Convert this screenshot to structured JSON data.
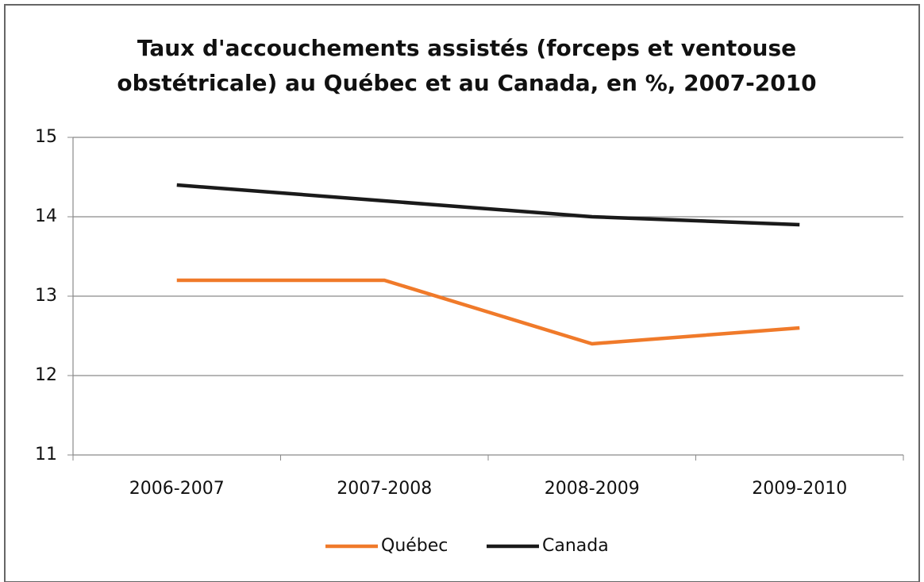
{
  "chart_data": {
    "type": "line",
    "title": [
      "Taux d'accouchements assistés (forceps et ventouse",
      "obstétricale) au Québec et au Canada, en %, 2007-2010"
    ],
    "categories": [
      "2006-2007",
      "2007-2008",
      "2008-2009",
      "2009-2010"
    ],
    "series": [
      {
        "name": "Québec",
        "color": "#f07a2a",
        "values": [
          13.2,
          13.2,
          12.4,
          12.6
        ]
      },
      {
        "name": "Canada",
        "color": "#1a1a1a",
        "values": [
          14.4,
          14.2,
          14.0,
          13.9
        ]
      }
    ],
    "ylim": [
      11,
      15
    ],
    "yticks": [
      11,
      12,
      13,
      14,
      15
    ],
    "grid": true,
    "legend": "bottom"
  }
}
